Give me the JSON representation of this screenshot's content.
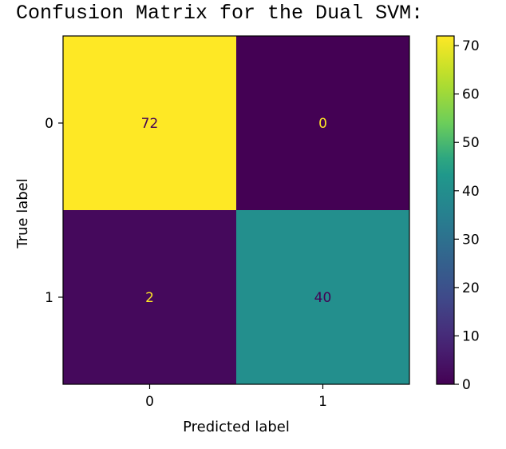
{
  "heading": "Confusion Matrix for the Dual SVM:",
  "chart_data": {
    "type": "heatmap",
    "colormap": "viridis",
    "rows": [
      "0",
      "1"
    ],
    "columns": [
      "0",
      "1"
    ],
    "values": [
      [
        72,
        0
      ],
      [
        2,
        40
      ]
    ],
    "xlabel": "Predicted label",
    "ylabel": "True label",
    "colorbar": {
      "range": [
        0,
        72
      ],
      "ticks": [
        0,
        10,
        20,
        30,
        40,
        50,
        60,
        70
      ]
    },
    "text_color_dark_cell": "#fde725",
    "text_color_light_cell": "#440154"
  }
}
